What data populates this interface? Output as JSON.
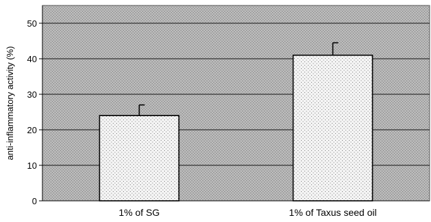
{
  "chart_data": {
    "type": "bar",
    "title": "",
    "xlabel": "",
    "ylabel": "anti-inflammatory activity (%)",
    "categories": [
      "1% of SG",
      "1% of Taxus seed oil"
    ],
    "values": [
      24,
      41
    ],
    "error_bars": [
      3,
      3.5
    ],
    "ylim": [
      0,
      55
    ],
    "yticks": [
      0,
      10,
      20,
      30,
      40,
      50
    ],
    "grid": true,
    "legend": "none",
    "colors": {
      "plot_background": "#a9a9a9",
      "bar_fill": "#f2f2f2",
      "bar_stipple": "#777777",
      "axis": "#000000",
      "gridline": "#000000"
    }
  }
}
